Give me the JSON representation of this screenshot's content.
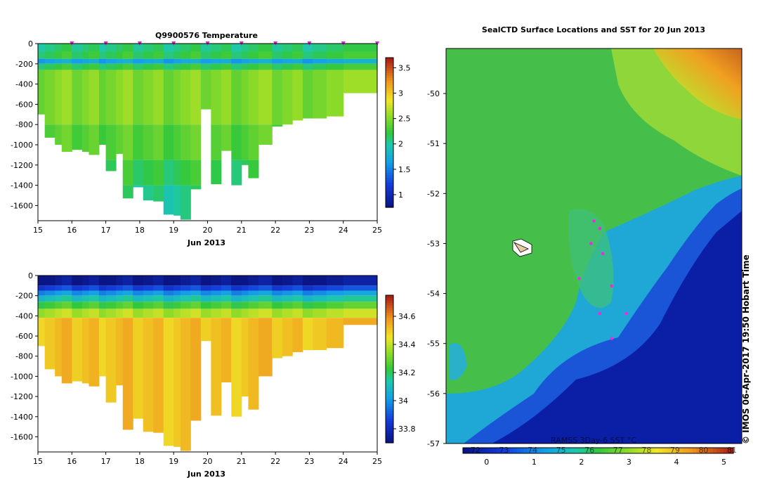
{
  "credit": "©  IMOS 06-Apr-2017 19:50 Hobart Time",
  "chart_data": [
    {
      "type": "heatmap",
      "title": "Q9900576  Temperature",
      "xlabel": "Jun 2013",
      "ylabel": "",
      "xlim": [
        15,
        25
      ],
      "ylim": [
        -1750,
        0
      ],
      "xticks": [
        "15",
        "16",
        "17",
        "18",
        "19",
        "20",
        "21",
        "22",
        "23",
        "24",
        "25"
      ],
      "yticks": [
        "0",
        "-200",
        "-400",
        "-600",
        "-800",
        "-1000",
        "-1200",
        "-1400",
        "-1600"
      ],
      "colorbar": {
        "range": [
          0.75,
          3.7
        ],
        "ticks": [
          "1",
          "1.5",
          "2",
          "2.5",
          "3",
          "3.5"
        ]
      },
      "surfacing_markers_day": [
        16,
        17,
        18,
        19,
        20,
        21,
        22,
        23,
        24,
        25
      ],
      "profiles": [
        {
          "t": 15.0,
          "max_depth": 700
        },
        {
          "t": 15.2,
          "max_depth": 930
        },
        {
          "t": 15.5,
          "max_depth": 1000
        },
        {
          "t": 15.7,
          "max_depth": 1070
        },
        {
          "t": 16.0,
          "max_depth": 1050
        },
        {
          "t": 16.3,
          "max_depth": 1070
        },
        {
          "t": 16.5,
          "max_depth": 1100
        },
        {
          "t": 16.8,
          "max_depth": 1000
        },
        {
          "t": 17.0,
          "max_depth": 1260
        },
        {
          "t": 17.3,
          "max_depth": 1090
        },
        {
          "t": 17.5,
          "max_depth": 1530
        },
        {
          "t": 17.8,
          "max_depth": 1420
        },
        {
          "t": 18.1,
          "max_depth": 1550
        },
        {
          "t": 18.4,
          "max_depth": 1560
        },
        {
          "t": 18.7,
          "max_depth": 1690
        },
        {
          "t": 19.0,
          "max_depth": 1700
        },
        {
          "t": 19.2,
          "max_depth": 1740
        },
        {
          "t": 19.5,
          "max_depth": 1440
        },
        {
          "t": 19.8,
          "max_depth": 650
        },
        {
          "t": 20.1,
          "max_depth": 1390
        },
        {
          "t": 20.4,
          "max_depth": 1060
        },
        {
          "t": 20.7,
          "max_depth": 1400
        },
        {
          "t": 21.0,
          "max_depth": 1200
        },
        {
          "t": 21.2,
          "max_depth": 1330
        },
        {
          "t": 21.5,
          "max_depth": 1000
        },
        {
          "t": 21.9,
          "max_depth": 820
        },
        {
          "t": 22.2,
          "max_depth": 800
        },
        {
          "t": 22.5,
          "max_depth": 760
        },
        {
          "t": 22.8,
          "max_depth": 740
        },
        {
          "t": 23.1,
          "max_depth": 740
        },
        {
          "t": 23.5,
          "max_depth": 720
        },
        {
          "t": 24.0,
          "max_depth": 490
        }
      ],
      "profile_end": 25.0,
      "layers": [
        {
          "top": 0,
          "bottom": 80,
          "value": 2.1
        },
        {
          "top": 80,
          "bottom": 150,
          "value": 2.2
        },
        {
          "top": 150,
          "bottom": 200,
          "value": 1.7
        },
        {
          "top": 200,
          "bottom": 260,
          "value": 2.2
        },
        {
          "top": 260,
          "bottom": 800,
          "value": 2.5
        },
        {
          "top": 800,
          "bottom": 1150,
          "value": 2.35
        },
        {
          "top": 1150,
          "bottom": 1400,
          "value": 2.2
        },
        {
          "top": 1400,
          "bottom": 1750,
          "value": 2.05
        }
      ]
    },
    {
      "type": "heatmap",
      "title": "",
      "xlabel": "Jun 2013",
      "ylabel": "",
      "xlim": [
        15,
        25
      ],
      "ylim": [
        -1750,
        0
      ],
      "xticks": [
        "15",
        "16",
        "17",
        "18",
        "19",
        "20",
        "21",
        "22",
        "23",
        "24",
        "25"
      ],
      "yticks": [
        "0",
        "-200",
        "-400",
        "-600",
        "-800",
        "-1000",
        "-1200",
        "-1400",
        "-1600"
      ],
      "colorbar": {
        "range": [
          33.7,
          34.75
        ],
        "ticks": [
          "33.8",
          "34",
          "34.2",
          "34.4",
          "34.6"
        ]
      },
      "layers": [
        {
          "top": 0,
          "bottom": 100,
          "value": 33.72
        },
        {
          "top": 100,
          "bottom": 150,
          "value": 33.86
        },
        {
          "top": 150,
          "bottom": 200,
          "value": 34.0
        },
        {
          "top": 200,
          "bottom": 260,
          "value": 34.12
        },
        {
          "top": 260,
          "bottom": 330,
          "value": 34.25
        },
        {
          "top": 330,
          "bottom": 420,
          "value": 34.38
        },
        {
          "top": 420,
          "bottom": 1750,
          "value": 34.52
        }
      ]
    },
    {
      "type": "heatmap",
      "title": "SealCTD Surface Locations and SST for 20 Jun 2013",
      "xlabel": "",
      "ylabel": "",
      "ylim": [
        -57,
        -49.1
      ],
      "yticks": [
        "-50",
        "-51",
        "-52",
        "-53",
        "-54",
        "-55",
        "-56",
        "-57"
      ],
      "colorbar": {
        "label": "RAMSS 3Day-6 SST °C",
        "range": [
          -0.5,
          5.2
        ],
        "ticks_c": [
          "0",
          "1",
          "2",
          "3",
          "4",
          "5"
        ],
        "ticks_f": [
          "72",
          "73",
          "74",
          "75",
          "76",
          "77",
          "78",
          "79",
          "80",
          "81"
        ]
      },
      "seal_locations": [
        {
          "lon": 0.5,
          "lat": -52.55
        },
        {
          "lon": 0.52,
          "lat": -52.7
        },
        {
          "lon": 0.49,
          "lat": -53.0
        },
        {
          "lon": 0.53,
          "lat": -53.2
        },
        {
          "lon": 0.45,
          "lat": -53.7
        },
        {
          "lon": 0.56,
          "lat": -53.85
        },
        {
          "lon": 0.52,
          "lat": -54.4
        },
        {
          "lon": 0.61,
          "lat": -54.4
        },
        {
          "lon": 0.56,
          "lat": -54.9
        }
      ]
    }
  ]
}
